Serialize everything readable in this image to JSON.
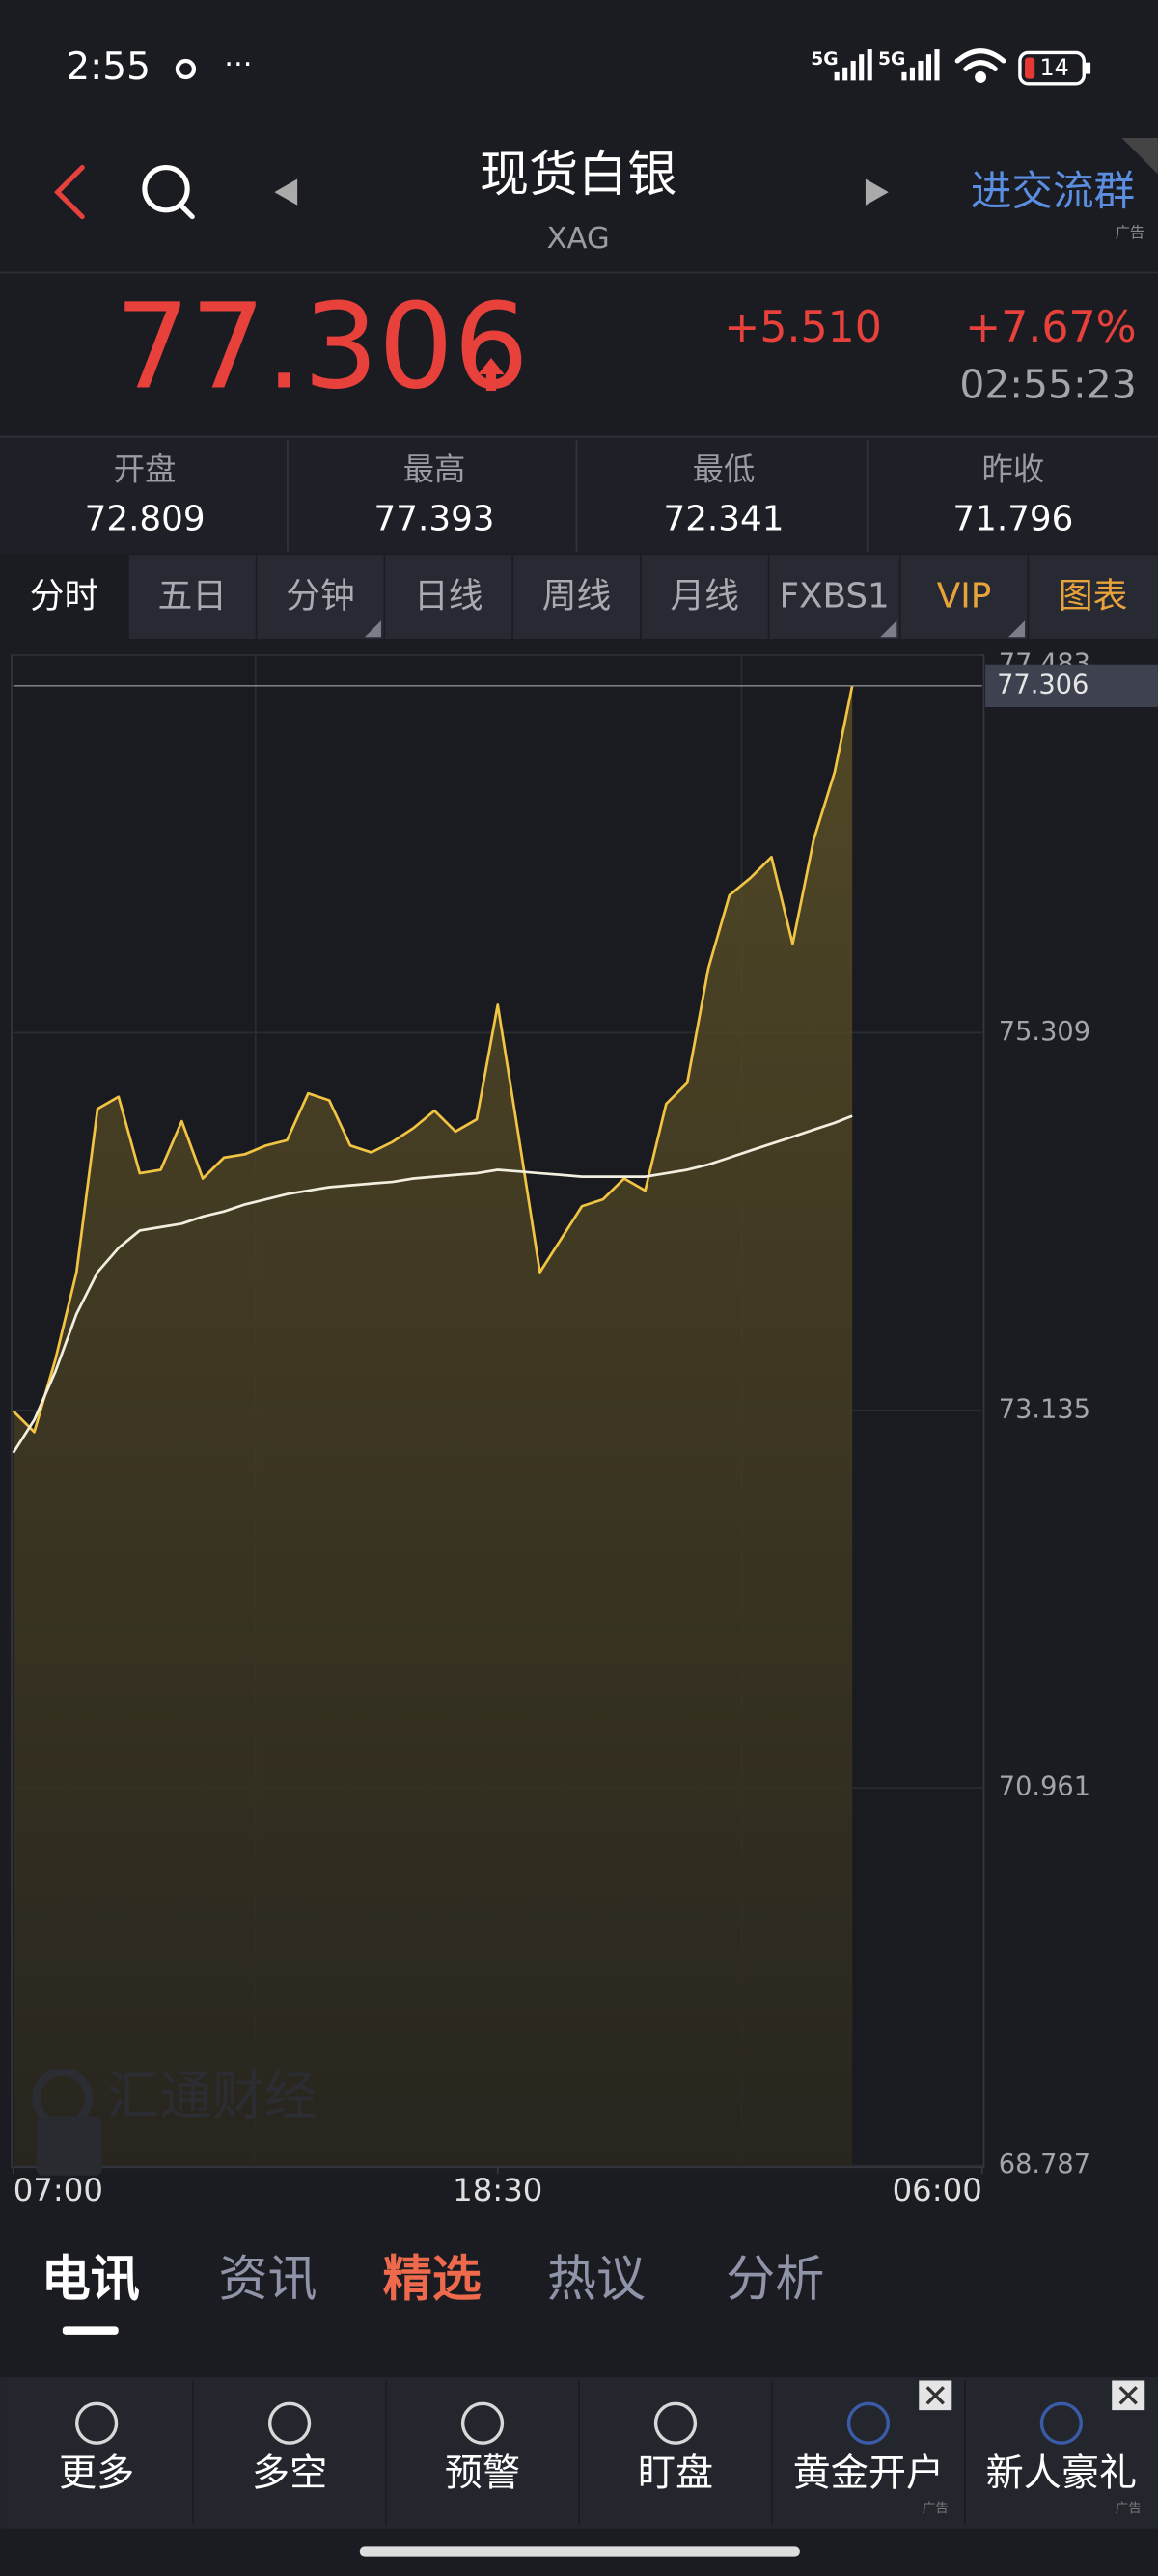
{
  "status": {
    "time": "2:55",
    "network": [
      "5G",
      "5G"
    ],
    "battery": "14"
  },
  "header": {
    "title": "现货白银",
    "subtitle": "XAG",
    "promo": "进交流群",
    "ad": "广告"
  },
  "quote": {
    "price": "77.306",
    "change": "+5.510",
    "change_pct": "+7.67%",
    "time": "02:55:23"
  },
  "stats": [
    {
      "label": "开盘",
      "value": "72.809"
    },
    {
      "label": "最高",
      "value": "77.393"
    },
    {
      "label": "最低",
      "value": "72.341"
    },
    {
      "label": "昨收",
      "value": "71.796"
    }
  ],
  "tabs": [
    "分时",
    "五日",
    "分钟",
    "日线",
    "周线",
    "月线",
    "FXBS1",
    "VIP",
    "图表"
  ],
  "chart_data": {
    "type": "line",
    "x": [
      0,
      30,
      60,
      90,
      120,
      150,
      180,
      210,
      240,
      270,
      300,
      330,
      360,
      390,
      420,
      450,
      480,
      510,
      540,
      570,
      600,
      630,
      660,
      690,
      720,
      750,
      780,
      810,
      840,
      870,
      900,
      930,
      960,
      990,
      1020,
      1050,
      1080,
      1110,
      1140,
      1170,
      1195
    ],
    "series": [
      {
        "color": "#f2c443",
        "values": [
          73.13,
          73.01,
          73.43,
          73.93,
          74.87,
          74.94,
          74.5,
          74.52,
          74.8,
          74.47,
          74.59,
          74.61,
          74.66,
          74.69,
          74.96,
          74.92,
          74.66,
          74.62,
          74.68,
          74.76,
          74.86,
          74.74,
          74.81,
          75.47,
          74.71,
          73.93,
          74.12,
          74.31,
          74.35,
          74.47,
          74.4,
          74.9,
          75.02,
          75.68,
          76.1,
          76.2,
          76.32,
          75.82,
          76.42,
          76.81,
          77.306
        ]
      },
      {
        "color": "#f3efe0",
        "values": [
          72.89,
          73.08,
          73.36,
          73.69,
          73.93,
          74.07,
          74.17,
          74.19,
          74.21,
          74.25,
          74.28,
          74.32,
          74.35,
          74.38,
          74.4,
          74.42,
          74.43,
          74.44,
          74.45,
          74.47,
          74.48,
          74.49,
          74.5,
          74.52,
          74.51,
          74.5,
          74.49,
          74.48,
          74.48,
          74.48,
          74.48,
          74.5,
          74.52,
          74.55,
          74.59,
          74.63,
          74.67,
          74.71,
          74.75,
          74.79,
          74.83
        ]
      }
    ],
    "last_value": 77.306,
    "xlim": [
      0,
      1380
    ],
    "xticks": [
      {
        "value": 0,
        "label": "07:00"
      },
      {
        "value": 690,
        "label": "18:30"
      },
      {
        "value": 1380,
        "label": "06:00"
      }
    ],
    "ylim": [
      68.787,
      77.483
    ],
    "yticks": [
      77.483,
      75.309,
      73.135,
      70.961,
      68.787
    ],
    "grid": true
  },
  "watermark": "汇通财经",
  "news_tabs": [
    "电讯",
    "资讯",
    "精选",
    "热议",
    "分析"
  ],
  "bottom_nav": [
    "更多",
    "多空",
    "预警",
    "盯盘",
    "黄金开户",
    "新人豪礼"
  ],
  "bottom_ads": [
    "广告",
    "广告"
  ]
}
